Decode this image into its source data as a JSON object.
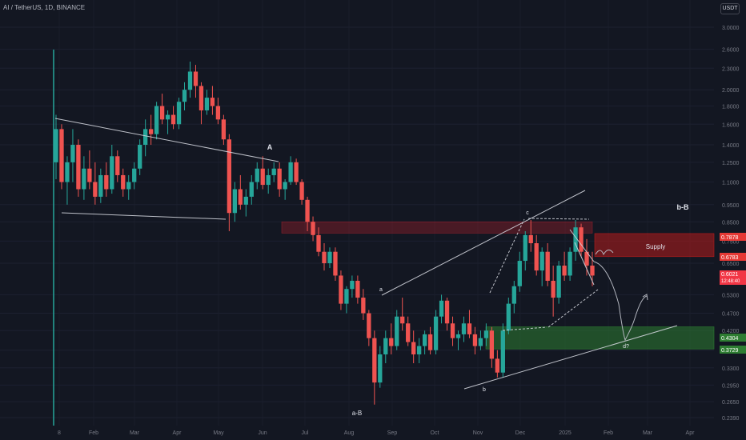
{
  "header": {
    "symbol": "AI / TetherUS, 1D, BINANCE",
    "currency_button": "USDT"
  },
  "chart_data": {
    "type": "candlestick",
    "title": "AI / TetherUS, 1D, BINANCE",
    "y_axis": {
      "scale": "log",
      "ticks": [
        "3.0000",
        "2.6000",
        "2.3000",
        "2.0000",
        "1.8000",
        "1.6000",
        "1.4000",
        "1.2500",
        "1.1000",
        "0.9500",
        "0.8500",
        "0.7500",
        "0.6500",
        "0.5300",
        "0.4700",
        "0.4200",
        "0.3700",
        "0.3300",
        "0.2950",
        "0.2650",
        "0.2390"
      ],
      "range": [
        0.225,
        3.3
      ]
    },
    "x_axis": {
      "ticks": [
        "8",
        "Feb",
        "Mar",
        "Apr",
        "May",
        "Jun",
        "Jul",
        "Aug",
        "Sep",
        "Oct",
        "Nov",
        "Dec",
        "2025",
        "Feb",
        "Mar",
        "Apr"
      ]
    },
    "price_badges": [
      {
        "value": "0.7878",
        "color": "#e53935"
      },
      {
        "value": "0.6783",
        "color": "#e53935"
      },
      {
        "value": "0.6021",
        "sub": "12:48:40",
        "color": "#f23645"
      },
      {
        "value": "0.4304",
        "color": "#2e7d32"
      },
      {
        "value": "0.3729",
        "color": "#2e7d32"
      }
    ],
    "annotations": [
      "A",
      "a-B",
      "a",
      "b",
      "c",
      "d?",
      "b-B",
      "Supply"
    ],
    "zones": [
      {
        "name": "Supply",
        "top": 0.7878,
        "bottom": 0.6783,
        "color": "#b71c1c"
      },
      {
        "name": "demand",
        "top": 0.4304,
        "bottom": 0.3729,
        "color": "#2e7d32"
      },
      {
        "name": "old-supply",
        "top": 0.85,
        "bottom": 0.79,
        "color": "#8b1f2b"
      }
    ],
    "candles": [
      [
        1.25,
        1.7,
        1.12,
        1.55
      ],
      [
        1.55,
        1.6,
        1.05,
        1.1
      ],
      [
        1.1,
        1.3,
        0.95,
        1.25
      ],
      [
        1.25,
        1.55,
        1.1,
        1.4
      ],
      [
        1.4,
        1.45,
        1.0,
        1.05
      ],
      [
        1.05,
        1.3,
        0.98,
        1.2
      ],
      [
        1.2,
        1.35,
        1.05,
        1.1
      ],
      [
        1.1,
        1.25,
        0.95,
        1.0
      ],
      [
        1.0,
        1.2,
        0.96,
        1.15
      ],
      [
        1.15,
        1.25,
        1.0,
        1.05
      ],
      [
        1.05,
        1.4,
        1.02,
        1.3
      ],
      [
        1.3,
        1.35,
        1.1,
        1.15
      ],
      [
        1.15,
        1.2,
        1.0,
        1.05
      ],
      [
        1.05,
        1.15,
        0.98,
        1.1
      ],
      [
        1.1,
        1.25,
        1.05,
        1.2
      ],
      [
        1.2,
        1.45,
        1.15,
        1.4
      ],
      [
        1.4,
        1.65,
        1.3,
        1.55
      ],
      [
        1.55,
        1.7,
        1.4,
        1.5
      ],
      [
        1.5,
        1.85,
        1.45,
        1.8
      ],
      [
        1.8,
        1.95,
        1.6,
        1.65
      ],
      [
        1.65,
        1.75,
        1.5,
        1.7
      ],
      [
        1.7,
        1.8,
        1.55,
        1.6
      ],
      [
        1.6,
        1.9,
        1.55,
        1.85
      ],
      [
        1.85,
        2.1,
        1.75,
        2.0
      ],
      [
        2.0,
        2.4,
        1.9,
        2.25
      ],
      [
        2.25,
        2.35,
        1.9,
        2.05
      ],
      [
        2.05,
        2.1,
        1.6,
        1.75
      ],
      [
        1.75,
        2.0,
        1.7,
        1.9
      ],
      [
        1.9,
        2.05,
        1.7,
        1.8
      ],
      [
        1.8,
        1.9,
        1.6,
        1.65
      ],
      [
        1.65,
        1.7,
        1.4,
        1.45
      ],
      [
        1.45,
        1.5,
        0.8,
        0.9
      ],
      [
        0.9,
        1.1,
        0.85,
        1.05
      ],
      [
        1.05,
        1.15,
        0.92,
        0.95
      ],
      [
        0.95,
        1.05,
        0.88,
        1.0
      ],
      [
        1.0,
        1.15,
        0.95,
        1.1
      ],
      [
        1.1,
        1.25,
        1.05,
        1.2
      ],
      [
        1.2,
        1.3,
        1.05,
        1.08
      ],
      [
        1.08,
        1.2,
        1.02,
        1.15
      ],
      [
        1.15,
        1.25,
        1.1,
        1.2
      ],
      [
        1.2,
        1.25,
        1.0,
        1.05
      ],
      [
        1.05,
        1.12,
        0.98,
        1.1
      ],
      [
        1.1,
        1.3,
        1.08,
        1.25
      ],
      [
        1.25,
        1.28,
        1.08,
        1.1
      ],
      [
        1.1,
        1.12,
        0.95,
        0.98
      ],
      [
        0.98,
        1.0,
        0.8,
        0.85
      ],
      [
        0.85,
        0.88,
        0.75,
        0.78
      ],
      [
        0.78,
        0.82,
        0.68,
        0.7
      ],
      [
        0.7,
        0.74,
        0.62,
        0.65
      ],
      [
        0.65,
        0.72,
        0.63,
        0.7
      ],
      [
        0.7,
        0.72,
        0.58,
        0.6
      ],
      [
        0.6,
        0.62,
        0.48,
        0.5
      ],
      [
        0.5,
        0.56,
        0.47,
        0.55
      ],
      [
        0.55,
        0.6,
        0.52,
        0.58
      ],
      [
        0.58,
        0.6,
        0.5,
        0.52
      ],
      [
        0.52,
        0.55,
        0.45,
        0.47
      ],
      [
        0.47,
        0.48,
        0.38,
        0.4
      ],
      [
        0.4,
        0.42,
        0.26,
        0.3
      ],
      [
        0.3,
        0.38,
        0.29,
        0.36
      ],
      [
        0.36,
        0.42,
        0.34,
        0.4
      ],
      [
        0.4,
        0.44,
        0.36,
        0.38
      ],
      [
        0.38,
        0.48,
        0.37,
        0.46
      ],
      [
        0.46,
        0.52,
        0.42,
        0.44
      ],
      [
        0.44,
        0.46,
        0.38,
        0.39
      ],
      [
        0.39,
        0.42,
        0.34,
        0.36
      ],
      [
        0.36,
        0.4,
        0.34,
        0.38
      ],
      [
        0.38,
        0.42,
        0.36,
        0.41
      ],
      [
        0.41,
        0.43,
        0.36,
        0.37
      ],
      [
        0.37,
        0.48,
        0.36,
        0.46
      ],
      [
        0.46,
        0.53,
        0.44,
        0.51
      ],
      [
        0.51,
        0.52,
        0.42,
        0.44
      ],
      [
        0.44,
        0.46,
        0.38,
        0.4
      ],
      [
        0.4,
        0.42,
        0.37,
        0.41
      ],
      [
        0.41,
        0.46,
        0.39,
        0.44
      ],
      [
        0.44,
        0.48,
        0.4,
        0.41
      ],
      [
        0.41,
        0.43,
        0.36,
        0.38
      ],
      [
        0.38,
        0.42,
        0.37,
        0.4
      ],
      [
        0.4,
        0.44,
        0.38,
        0.42
      ],
      [
        0.42,
        0.43,
        0.33,
        0.35
      ],
      [
        0.35,
        0.37,
        0.31,
        0.32
      ],
      [
        0.32,
        0.44,
        0.31,
        0.42
      ],
      [
        0.42,
        0.52,
        0.41,
        0.5
      ],
      [
        0.5,
        0.58,
        0.47,
        0.56
      ],
      [
        0.56,
        0.7,
        0.54,
        0.66
      ],
      [
        0.66,
        0.8,
        0.62,
        0.78
      ],
      [
        0.78,
        0.86,
        0.7,
        0.74
      ],
      [
        0.74,
        0.78,
        0.6,
        0.62
      ],
      [
        0.62,
        0.72,
        0.56,
        0.7
      ],
      [
        0.7,
        0.74,
        0.56,
        0.58
      ],
      [
        0.58,
        0.64,
        0.46,
        0.52
      ],
      [
        0.52,
        0.66,
        0.5,
        0.64
      ],
      [
        0.64,
        0.7,
        0.58,
        0.6
      ],
      [
        0.6,
        0.72,
        0.58,
        0.7
      ],
      [
        0.7,
        0.86,
        0.66,
        0.82
      ],
      [
        0.82,
        0.84,
        0.68,
        0.7
      ],
      [
        0.7,
        0.76,
        0.6,
        0.64
      ],
      [
        0.64,
        0.7,
        0.56,
        0.6
      ]
    ]
  },
  "colors": {
    "background": "#131722",
    "up": "#26a69a",
    "down": "#ef5350",
    "line": "#d1d4dc",
    "axis_text": "#787b86"
  }
}
